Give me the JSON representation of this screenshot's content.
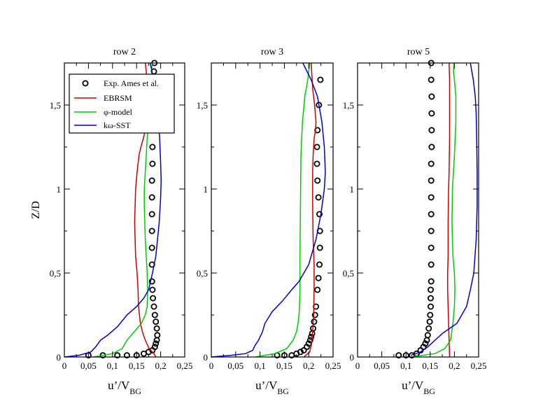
{
  "chart_data": [
    {
      "type": "line",
      "title": "row 2",
      "xlabel": "u’/V",
      "xlabel_sub": "BG",
      "ylabel": "Z/D",
      "xlim": [
        0,
        0.25
      ],
      "ylim": [
        0,
        1.75
      ],
      "xticks": [
        "0",
        "0,05",
        "0,1",
        "0,15",
        "0,2",
        "0,25"
      ],
      "yticks": [
        "0",
        "0,5",
        "1",
        "1,5"
      ],
      "legend": {
        "position": "top-left",
        "entries": [
          "Exp. Ames et al.",
          "EBRSM",
          "φ-model",
          "kω-SST"
        ]
      },
      "series": [
        {
          "name": "Exp. Ames et al.",
          "style": "markers",
          "color": "#000000",
          "x": [
            0.05,
            0.08,
            0.11,
            0.13,
            0.15,
            0.165,
            0.175,
            0.183,
            0.188,
            0.19,
            0.192,
            0.193,
            0.192,
            0.19,
            0.188,
            0.186,
            0.184,
            0.183,
            0.182,
            0.182,
            0.182,
            0.182,
            0.182,
            0.182,
            0.182,
            0.183,
            0.183,
            0.184,
            0.184,
            0.185,
            0.186,
            0.186,
            0.186,
            0.187
          ],
          "y": [
            0.01,
            0.01,
            0.01,
            0.01,
            0.01,
            0.02,
            0.03,
            0.04,
            0.06,
            0.08,
            0.1,
            0.13,
            0.17,
            0.21,
            0.25,
            0.3,
            0.35,
            0.4,
            0.45,
            0.55,
            0.65,
            0.75,
            0.85,
            0.95,
            1.05,
            1.15,
            1.25,
            1.35,
            1.45,
            1.55,
            1.6,
            1.65,
            1.7,
            1.75
          ]
        },
        {
          "name": "EBRSM",
          "style": "line",
          "color": "#cc0000",
          "x": [
            0.19,
            0.186,
            0.176,
            0.168,
            0.162,
            0.158,
            0.156,
            0.154,
            0.153,
            0.151,
            0.148,
            0.146,
            0.148,
            0.151,
            0.155,
            0.159,
            0.164,
            0.168,
            0.171,
            0.172,
            0.172,
            0.17,
            0.168
          ],
          "y": [
            0.0,
            0.02,
            0.05,
            0.1,
            0.15,
            0.2,
            0.25,
            0.3,
            0.4,
            0.5,
            0.6,
            0.8,
            1.0,
            1.1,
            1.2,
            1.25,
            1.3,
            1.35,
            1.4,
            1.5,
            1.6,
            1.7,
            1.75
          ]
        },
        {
          "name": "φ-model",
          "style": "line",
          "color": "#00cc00",
          "x": [
            0.06,
            0.1,
            0.12,
            0.13,
            0.145,
            0.16,
            0.168,
            0.172,
            0.173,
            0.172,
            0.168,
            0.166,
            0.166,
            0.168,
            0.17,
            0.172,
            0.175,
            0.179,
            0.181,
            0.182
          ],
          "y": [
            0.0,
            0.02,
            0.05,
            0.1,
            0.15,
            0.2,
            0.25,
            0.3,
            0.4,
            0.5,
            0.7,
            0.9,
            1.0,
            1.1,
            1.2,
            1.3,
            1.4,
            1.5,
            1.6,
            1.75
          ]
        },
        {
          "name": "kω-SST",
          "style": "line",
          "color": "#0000cc",
          "x": [
            0.0,
            0.03,
            0.055,
            0.065,
            0.075,
            0.09,
            0.11,
            0.13,
            0.15,
            0.165,
            0.175,
            0.183,
            0.19,
            0.197,
            0.2,
            0.201,
            0.2,
            0.198,
            0.195,
            0.19,
            0.185,
            0.182,
            0.178
          ],
          "y": [
            0.0,
            0.01,
            0.03,
            0.06,
            0.1,
            0.13,
            0.18,
            0.25,
            0.3,
            0.35,
            0.4,
            0.5,
            0.6,
            0.8,
            0.95,
            1.05,
            1.15,
            1.3,
            1.4,
            1.5,
            1.6,
            1.7,
            1.75
          ]
        }
      ]
    },
    {
      "type": "line",
      "title": "row 3",
      "xlabel": "u’/V",
      "xlabel_sub": "BG",
      "ylabel": "",
      "xlim": [
        0,
        0.25
      ],
      "ylim": [
        0,
        1.75
      ],
      "xticks": [
        "0",
        "0,05",
        "0,1",
        "0,15",
        "0,2",
        "0,25"
      ],
      "yticks": [
        "0",
        "0,5",
        "1",
        "1,5"
      ],
      "series": [
        {
          "name": "Exp. Ames et al.",
          "style": "markers",
          "color": "#000000",
          "x": [
            0.135,
            0.15,
            0.165,
            0.175,
            0.183,
            0.19,
            0.196,
            0.2,
            0.203,
            0.205,
            0.207,
            0.209,
            0.211,
            0.213,
            0.215,
            0.218,
            0.22,
            0.222,
            0.223,
            0.223,
            0.222,
            0.22,
            0.218,
            0.217,
            0.217,
            0.218,
            0.221,
            0.224
          ],
          "y": [
            0.01,
            0.01,
            0.01,
            0.02,
            0.03,
            0.04,
            0.06,
            0.08,
            0.1,
            0.12,
            0.14,
            0.17,
            0.21,
            0.25,
            0.3,
            0.4,
            0.47,
            0.55,
            0.65,
            0.75,
            0.85,
            0.95,
            1.05,
            1.15,
            1.25,
            1.35,
            1.5,
            1.65
          ]
        },
        {
          "name": "EBRSM",
          "style": "line",
          "color": "#cc0000",
          "x": [
            0.19,
            0.202,
            0.206,
            0.208,
            0.21,
            0.211,
            0.211,
            0.209,
            0.208,
            0.208,
            0.209,
            0.211,
            0.214,
            0.215,
            0.212,
            0.208,
            0.206,
            0.205
          ],
          "y": [
            0.0,
            0.03,
            0.08,
            0.15,
            0.25,
            0.4,
            0.55,
            0.7,
            0.9,
            1.1,
            1.2,
            1.3,
            1.35,
            1.4,
            1.5,
            1.6,
            1.7,
            1.75
          ]
        },
        {
          "name": "φ-model",
          "style": "line",
          "color": "#00cc00",
          "x": [
            0.09,
            0.13,
            0.155,
            0.168,
            0.175,
            0.178,
            0.18,
            0.181,
            0.182,
            0.182,
            0.183,
            0.184,
            0.187,
            0.192,
            0.198,
            0.202
          ],
          "y": [
            0.0,
            0.02,
            0.05,
            0.1,
            0.15,
            0.2,
            0.25,
            0.3,
            0.4,
            0.6,
            0.9,
            1.2,
            1.4,
            1.55,
            1.65,
            1.75
          ]
        },
        {
          "name": "kω-SST",
          "style": "line",
          "color": "#0000cc",
          "x": [
            0.0,
            0.04,
            0.07,
            0.085,
            0.09,
            0.097,
            0.105,
            0.11,
            0.125,
            0.145,
            0.165,
            0.18,
            0.2,
            0.215,
            0.225,
            0.232,
            0.234,
            0.232,
            0.227,
            0.218,
            0.205,
            0.188
          ],
          "y": [
            0.0,
            0.01,
            0.02,
            0.04,
            0.07,
            0.1,
            0.15,
            0.2,
            0.27,
            0.33,
            0.4,
            0.45,
            0.55,
            0.7,
            0.85,
            1.0,
            1.1,
            1.25,
            1.4,
            1.55,
            1.65,
            1.75
          ]
        }
      ]
    },
    {
      "type": "line",
      "title": "row 5",
      "xlabel": "u’/V",
      "xlabel_sub": "BG",
      "ylabel": "",
      "xlim": [
        0,
        0.25
      ],
      "ylim": [
        0,
        1.75
      ],
      "xticks": [
        "0",
        "0,05",
        "0,1",
        "0,15",
        "0,2",
        "0,25"
      ],
      "yticks": [
        "0",
        "0,5",
        "1",
        "1,5"
      ],
      "series": [
        {
          "name": "Exp. Ames et al.",
          "style": "markers",
          "color": "#000000",
          "x": [
            0.085,
            0.1,
            0.112,
            0.122,
            0.13,
            0.136,
            0.14,
            0.143,
            0.145,
            0.147,
            0.149,
            0.15,
            0.151,
            0.151,
            0.151,
            0.152,
            0.152,
            0.152,
            0.152,
            0.152,
            0.152,
            0.152,
            0.152,
            0.153,
            0.153,
            0.153,
            0.153,
            0.152,
            0.152
          ],
          "y": [
            0.01,
            0.01,
            0.01,
            0.02,
            0.04,
            0.06,
            0.08,
            0.1,
            0.13,
            0.17,
            0.21,
            0.25,
            0.3,
            0.35,
            0.4,
            0.45,
            0.55,
            0.65,
            0.75,
            0.85,
            0.95,
            1.05,
            1.15,
            1.25,
            1.35,
            1.45,
            1.55,
            1.65,
            1.75
          ]
        },
        {
          "name": "EBRSM",
          "style": "line",
          "color": "#cc0000",
          "x": [
            0.19,
            0.189,
            0.188,
            0.187,
            0.186,
            0.186,
            0.187,
            0.187,
            0.188,
            0.189,
            0.19,
            0.19,
            0.19,
            0.189
          ],
          "y": [
            0.0,
            0.1,
            0.2,
            0.3,
            0.4,
            0.5,
            0.6,
            0.8,
            1.0,
            1.1,
            1.3,
            1.5,
            1.65,
            1.75
          ]
        },
        {
          "name": "φ-model",
          "style": "line",
          "color": "#00cc00",
          "x": [
            0.11,
            0.16,
            0.18,
            0.192,
            0.197,
            0.2,
            0.201,
            0.2,
            0.197,
            0.195,
            0.196,
            0.2,
            0.203,
            0.203,
            0.2,
            0.198,
            0.199
          ],
          "y": [
            0.0,
            0.02,
            0.05,
            0.1,
            0.2,
            0.3,
            0.4,
            0.5,
            0.6,
            0.8,
            1.0,
            1.2,
            1.4,
            1.55,
            1.65,
            1.7,
            1.75
          ]
        },
        {
          "name": "kω-SST",
          "style": "line",
          "color": "#0000cc",
          "x": [
            0.11,
            0.13,
            0.145,
            0.16,
            0.175,
            0.19,
            0.205,
            0.215,
            0.225,
            0.233,
            0.24,
            0.245,
            0.247,
            0.247,
            0.246,
            0.245,
            0.243,
            0.239,
            0.233
          ],
          "y": [
            0.01,
            0.03,
            0.06,
            0.1,
            0.14,
            0.17,
            0.2,
            0.25,
            0.3,
            0.4,
            0.5,
            0.7,
            0.9,
            1.1,
            1.3,
            1.45,
            1.55,
            1.65,
            1.75
          ]
        }
      ]
    }
  ]
}
